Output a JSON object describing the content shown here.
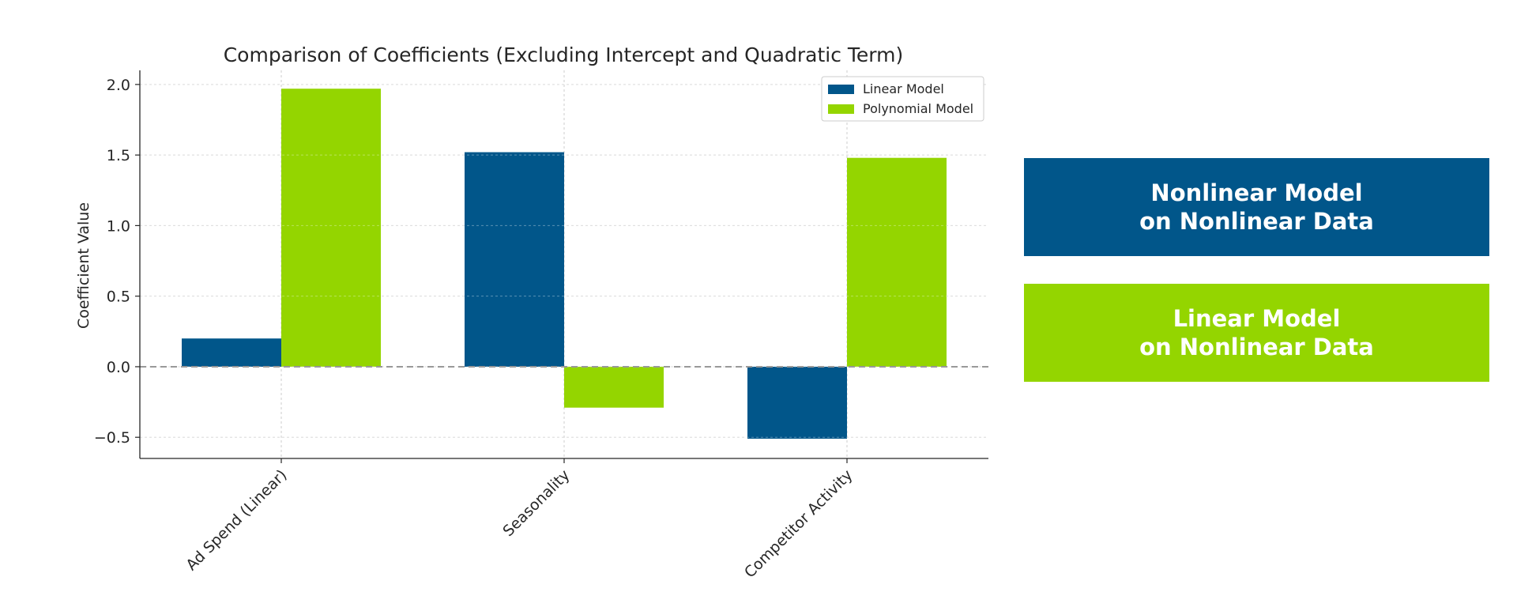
{
  "chart_data": {
    "type": "bar",
    "title": "Comparison of Coefficients (Excluding Intercept and Quadratic Term)",
    "xlabel": "",
    "ylabel": "Coefficient Value",
    "categories": [
      "Ad Spend (Linear)",
      "Seasonality",
      "Competitor Activity"
    ],
    "series": [
      {
        "name": "Linear Model",
        "color": "#01568a",
        "values": [
          0.2,
          1.52,
          -0.51
        ]
      },
      {
        "name": "Polynomial Model",
        "color": "#94d500",
        "values": [
          1.97,
          -0.29,
          1.48
        ]
      }
    ],
    "ylim": [
      -0.65,
      2.1
    ],
    "yticks": [
      -0.5,
      0.0,
      0.5,
      1.0,
      1.5,
      2.0
    ],
    "ytick_labels": [
      "−0.5",
      "0.0",
      "0.5",
      "1.0",
      "1.5",
      "2.0"
    ],
    "grid": true,
    "zero_line": "dashed",
    "legend_position": "top-right"
  },
  "panels": {
    "top": {
      "lines": [
        "Nonlinear Model",
        "on Nonlinear Data"
      ],
      "color": "#01568a"
    },
    "bottom": {
      "lines": [
        "Linear Model",
        "on Nonlinear Data"
      ],
      "color": "#94d500"
    }
  }
}
